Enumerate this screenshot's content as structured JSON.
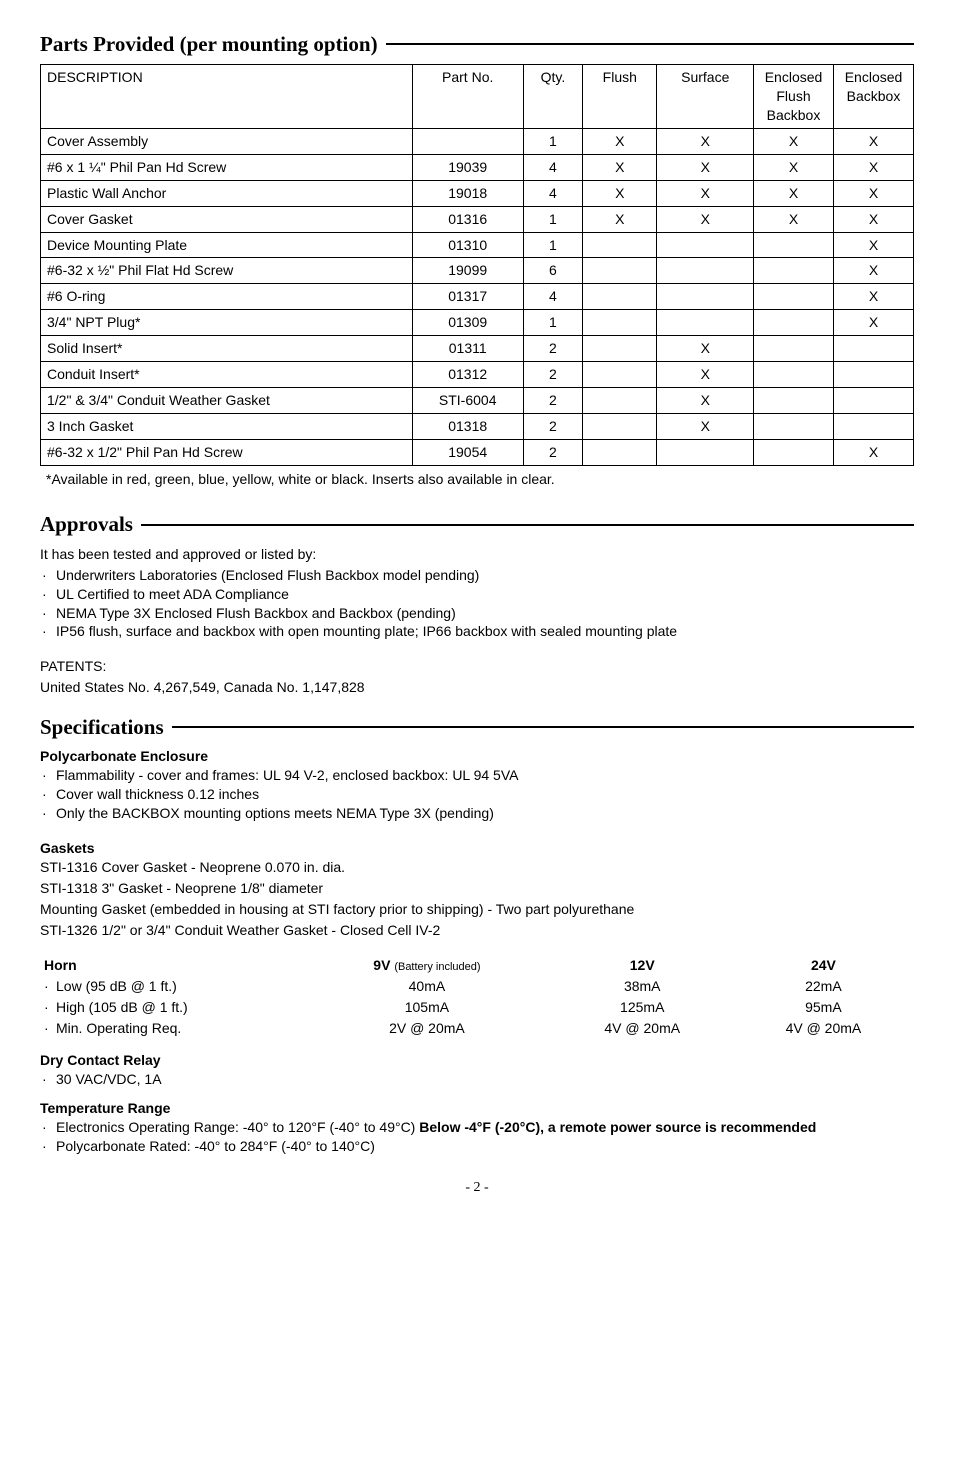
{
  "parts": {
    "heading": "Parts Provided (per mounting option)",
    "columns": [
      "DESCRIPTION",
      "Part No.",
      "Qty.",
      "Flush",
      "Surface",
      "Enclosed Flush Backbox",
      "Enclosed Backbox"
    ],
    "rows": [
      {
        "desc": "Cover Assembly",
        "part": "",
        "qty": "1",
        "flush": "X",
        "surface": "X",
        "efb": "X",
        "eb": "X"
      },
      {
        "desc": "#6 x 1 ¼\" Phil Pan Hd Screw",
        "part": "19039",
        "qty": "4",
        "flush": "X",
        "surface": "X",
        "efb": "X",
        "eb": "X"
      },
      {
        "desc": "Plastic Wall Anchor",
        "part": "19018",
        "qty": "4",
        "flush": "X",
        "surface": "X",
        "efb": "X",
        "eb": "X"
      },
      {
        "desc": "Cover Gasket",
        "part": "01316",
        "qty": "1",
        "flush": "X",
        "surface": "X",
        "efb": "X",
        "eb": "X"
      },
      {
        "desc": "Device Mounting Plate",
        "part": "01310",
        "qty": "1",
        "flush": "",
        "surface": "",
        "efb": "",
        "eb": "X"
      },
      {
        "desc": "#6-32 x ½\" Phil Flat Hd Screw",
        "part": "19099",
        "qty": "6",
        "flush": "",
        "surface": "",
        "efb": "",
        "eb": "X"
      },
      {
        "desc": "#6 O-ring",
        "part": "01317",
        "qty": "4",
        "flush": "",
        "surface": "",
        "efb": "",
        "eb": "X"
      },
      {
        "desc": "3/4\" NPT Plug*",
        "part": "01309",
        "qty": "1",
        "flush": "",
        "surface": "",
        "efb": "",
        "eb": "X"
      },
      {
        "desc": "Solid Insert*",
        "part": "01311",
        "qty": "2",
        "flush": "",
        "surface": "X",
        "efb": "",
        "eb": ""
      },
      {
        "desc": "Conduit Insert*",
        "part": "01312",
        "qty": "2",
        "flush": "",
        "surface": "X",
        "efb": "",
        "eb": ""
      },
      {
        "desc": "1/2\" & 3/4\" Conduit Weather Gasket",
        "part": "STI-6004",
        "qty": "2",
        "flush": "",
        "surface": "X",
        "efb": "",
        "eb": ""
      },
      {
        "desc": "3 Inch Gasket",
        "part": "01318",
        "qty": "2",
        "flush": "",
        "surface": "X",
        "efb": "",
        "eb": ""
      },
      {
        "desc": "#6-32 x 1/2\" Phil Pan Hd Screw",
        "part": "19054",
        "qty": "2",
        "flush": "",
        "surface": "",
        "efb": "",
        "eb": "X"
      }
    ],
    "footnote": "*Available in red, green, blue, yellow, white or black. Inserts also available in clear."
  },
  "approvals": {
    "heading": "Approvals",
    "intro": "It has been tested and approved or listed by:",
    "items": [
      "Underwriters Laboratories (Enclosed Flush Backbox model pending)",
      "UL Certified to meet ADA Compliance",
      "NEMA Type 3X Enclosed Flush Backbox and Backbox (pending)",
      "IP56 flush, surface and backbox with open mounting plate; IP66 backbox with sealed mounting plate"
    ],
    "patents_label": "PATENTS:",
    "patents_text": "United States No. 4,267,549, Canada No. 1,147,828"
  },
  "specs": {
    "heading": "Specifications",
    "poly": {
      "title": "Polycarbonate Enclosure",
      "items": [
        "Flammability - cover and frames: UL 94 V-2, enclosed backbox: UL 94 5VA",
        "Cover wall thickness  0.12 inches",
        "Only the BACKBOX mounting options meets NEMA Type 3X (pending)"
      ]
    },
    "gaskets": {
      "title": "Gaskets",
      "lines": [
        "STI-1316 Cover Gasket - Neoprene 0.070 in. dia.",
        "STI-1318 3\" Gasket - Neoprene 1/8\" diameter",
        "Mounting Gasket (embedded in housing at STI factory prior to shipping) - Two part polyurethane",
        "STI-1326 1/2\" or 3/4\" Conduit Weather Gasket - Closed Cell IV-2"
      ]
    },
    "horn": {
      "title": "Horn",
      "col9v": "9V",
      "col9v_note": "(Battery included)",
      "col12v": "12V",
      "col24v": "24V",
      "rows": [
        {
          "label": "Low (95 dB @ 1 ft.)",
          "v9": "40mA",
          "v12": "38mA",
          "v24": "22mA"
        },
        {
          "label": "High (105 dB @ 1 ft.)",
          "v9": "105mA",
          "v12": "125mA",
          "v24": "95mA"
        },
        {
          "label": "Min. Operating Req.",
          "v9": "2V @ 20mA",
          "v12": "4V @ 20mA",
          "v24": "4V @ 20mA"
        }
      ]
    },
    "dry": {
      "title": "Dry Contact Relay",
      "items": [
        "30 VAC/VDC, 1A"
      ]
    },
    "temp": {
      "title": "Temperature Range",
      "item1_pre": "Electronics Operating Range: -40° to 120°F (-40° to 49°C) ",
      "item1_bold": "Below -4°F (-20°C), a remote power source is recommended",
      "item2": "Polycarbonate Rated: -40° to 284°F (-40° to 140°C)"
    }
  },
  "pagenum": "- 2 -"
}
